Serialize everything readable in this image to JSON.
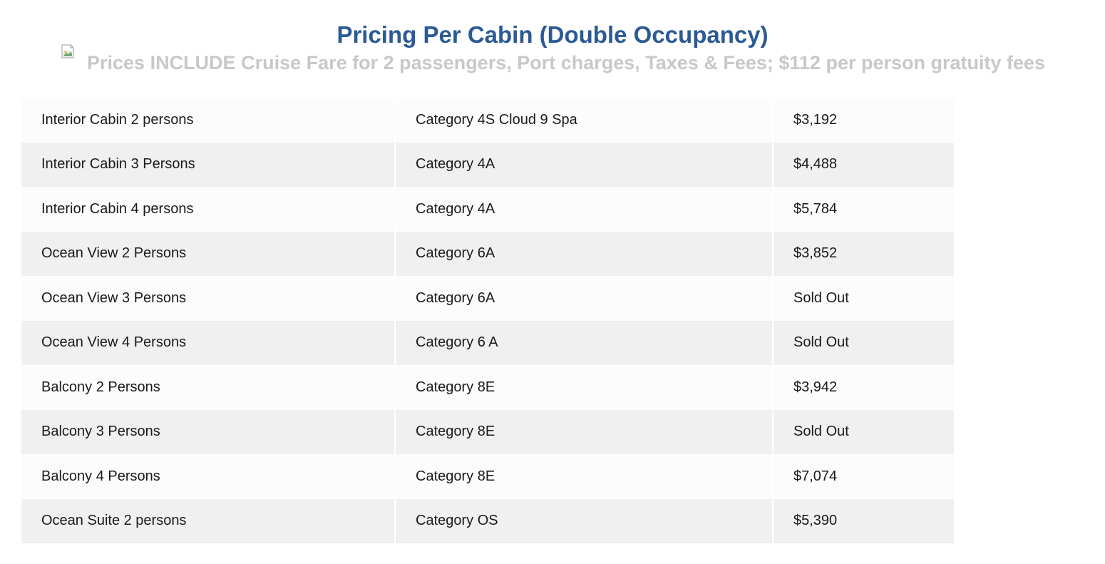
{
  "header": {
    "title": "Pricing Per Cabin (Double Occupancy)",
    "subtitle": "Prices INCLUDE Cruise Fare for 2 passengers, Port charges, Taxes & Fees; $112 per person gratuity fees",
    "image_icon": "broken-image-icon"
  },
  "colors": {
    "title": "#2b5a94",
    "subtitle": "#c8c8c8",
    "row_light": "#fcfcfc",
    "row_dark": "#f0f0f0"
  },
  "table": {
    "rows": [
      {
        "cabin": "Interior Cabin 2 persons",
        "category": "Category 4S Cloud 9 Spa",
        "price": "$3,192"
      },
      {
        "cabin": "Interior Cabin 3 Persons",
        "category": "Category 4A",
        "price": "$4,488"
      },
      {
        "cabin": "Interior Cabin 4 persons",
        "category": "Category 4A",
        "price": "$5,784"
      },
      {
        "cabin": "Ocean View 2 Persons",
        "category": "Category 6A",
        "price": "$3,852"
      },
      {
        "cabin": "Ocean View 3 Persons",
        "category": "Category 6A",
        "price": "Sold Out"
      },
      {
        "cabin": "Ocean View 4 Persons",
        "category": "Category 6 A",
        "price": "Sold Out"
      },
      {
        "cabin": "Balcony 2 Persons",
        "category": "Category 8E",
        "price": "$3,942"
      },
      {
        "cabin": "Balcony 3 Persons",
        "category": "Category 8E",
        "price": "Sold Out"
      },
      {
        "cabin": "Balcony 4 Persons",
        "category": "Category 8E",
        "price": "$7,074"
      },
      {
        "cabin": "Ocean Suite 2 persons",
        "category": "Category OS",
        "price": "$5,390"
      }
    ]
  }
}
